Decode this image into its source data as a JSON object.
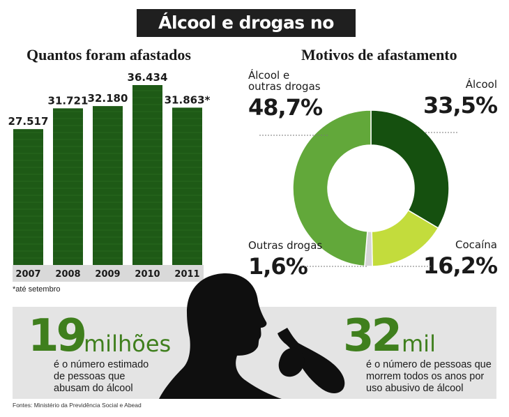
{
  "title": "Álcool e drogas no trabalho",
  "chart_data": [
    {
      "type": "bar",
      "title": "Quantos foram afastados",
      "categories": [
        "2007",
        "2008",
        "2009",
        "2010",
        "2011"
      ],
      "values": [
        27517,
        31721,
        32180,
        36434,
        31863
      ],
      "value_labels": [
        "27.517",
        "31.721",
        "32.180",
        "36.434",
        "31.863*"
      ],
      "footnote": "*até setembro",
      "color": "#1e5a16"
    },
    {
      "type": "pie",
      "title": "Motivos de afastamento",
      "slices": [
        {
          "label": "Álcool",
          "label_lines": [
            "Álcool"
          ],
          "value": 33.5,
          "value_label": "33,5%",
          "color": "#15500f"
        },
        {
          "label": "Cocaína",
          "label_lines": [
            "Cocaína"
          ],
          "value": 16.2,
          "value_label": "16,2%",
          "color": "#c3dc3c"
        },
        {
          "label": "Outras drogas",
          "label_lines": [
            "Outras drogas"
          ],
          "value": 1.6,
          "value_label": "1,6%",
          "color": "#d6d6d6"
        },
        {
          "label": "Álcool e outras drogas",
          "label_lines": [
            "Álcool e",
            "outras drogas"
          ],
          "value": 48.7,
          "value_label": "48,7%",
          "color": "#62a83a"
        }
      ]
    }
  ],
  "stats": [
    {
      "number": "19",
      "unit": "milhões",
      "desc": [
        "é o número estimado",
        "de pessoas que",
        "abusam do álcool"
      ]
    },
    {
      "number": "32",
      "unit": "mil",
      "desc": [
        "é o número de pessoas que",
        "morrem todos os anos por",
        "uso abusivo de álcool"
      ]
    }
  ],
  "sources": "Fontes: Ministério da Previdência Social e Abead",
  "colors": {
    "accent_green": "#3f7f1d",
    "dark_bar": "#1e5a16",
    "band_grey": "#e4e4e4"
  }
}
